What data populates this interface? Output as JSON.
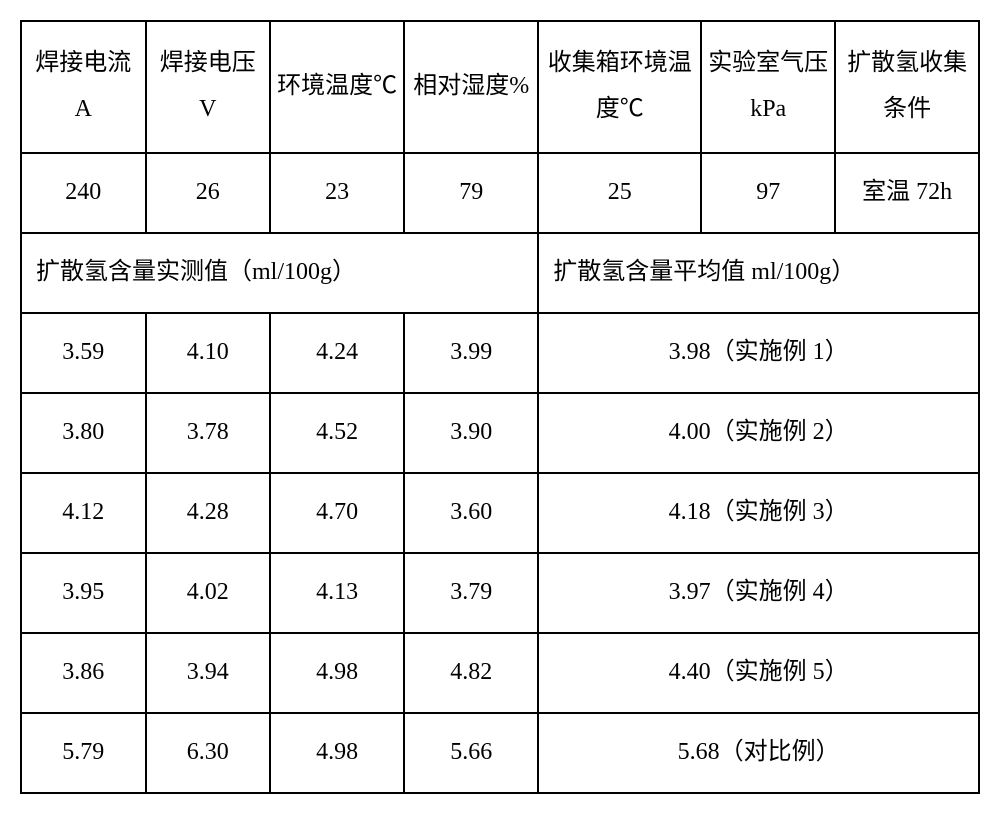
{
  "table": {
    "header_row": [
      "焊接电流 A",
      "焊接电压 V",
      "环境温度℃",
      "相对湿度%",
      "收集箱环境温度℃",
      "实验室气压 kPa",
      "扩散氢收集条件"
    ],
    "param_row": [
      "240",
      "26",
      "23",
      "79",
      "25",
      "97",
      "室温 72h"
    ],
    "sub_left": "扩散氢含量实测值（ml/100g）",
    "sub_right": "扩散氢含量平均值 ml/100g）",
    "data_rows": [
      {
        "v": [
          "3.59",
          "4.10",
          "4.24",
          "3.99"
        ],
        "avg": "3.98（实施例 1）"
      },
      {
        "v": [
          "3.80",
          "3.78",
          "4.52",
          "3.90"
        ],
        "avg": "4.00（实施例 2）"
      },
      {
        "v": [
          "4.12",
          "4.28",
          "4.70",
          "3.60"
        ],
        "avg": "4.18（实施例 3）"
      },
      {
        "v": [
          "3.95",
          "4.02",
          "4.13",
          "3.79"
        ],
        "avg": "3.97（实施例 4）"
      },
      {
        "v": [
          "3.86",
          "3.94",
          "4.98",
          "4.82"
        ],
        "avg": "4.40（实施例 5）"
      },
      {
        "v": [
          "5.79",
          "6.30",
          "4.98",
          "5.66"
        ],
        "avg": "5.68（对比例）"
      }
    ]
  },
  "style": {
    "font_size_pt": 24,
    "border_color": "#000000",
    "background_color": "#ffffff",
    "text_color": "#000000"
  }
}
